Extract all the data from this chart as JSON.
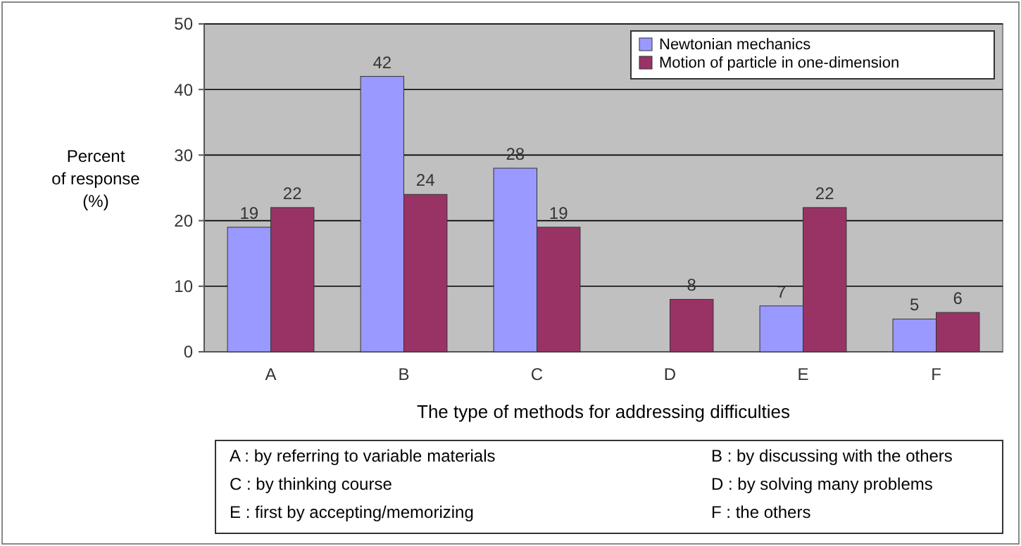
{
  "chart_data": {
    "type": "bar",
    "ylabel": "Percent\nof response\n(%)",
    "xlabel": "The type of methods for addressing difficulties",
    "categories": [
      "A",
      "B",
      "C",
      "D",
      "E",
      "F"
    ],
    "series": [
      {
        "name": "Newtonian mechanics",
        "color": "#9999ff",
        "values": [
          19,
          42,
          28,
          null,
          7,
          5
        ]
      },
      {
        "name": "Motion of particle in one-dimension",
        "color": "#993366",
        "values": [
          22,
          24,
          19,
          8,
          22,
          6
        ]
      }
    ],
    "ylim": [
      0,
      50
    ],
    "yticks": [
      0,
      10,
      20,
      30,
      40,
      50
    ],
    "grid": "y",
    "legend": "top right",
    "data_labels": true,
    "annotations": [
      "A : by referring to variable materials",
      "B : by discussing with the others",
      "C : by thinking course",
      "D : by solving many problems",
      "E : first by accepting/memorizing",
      "F : the others"
    ]
  }
}
